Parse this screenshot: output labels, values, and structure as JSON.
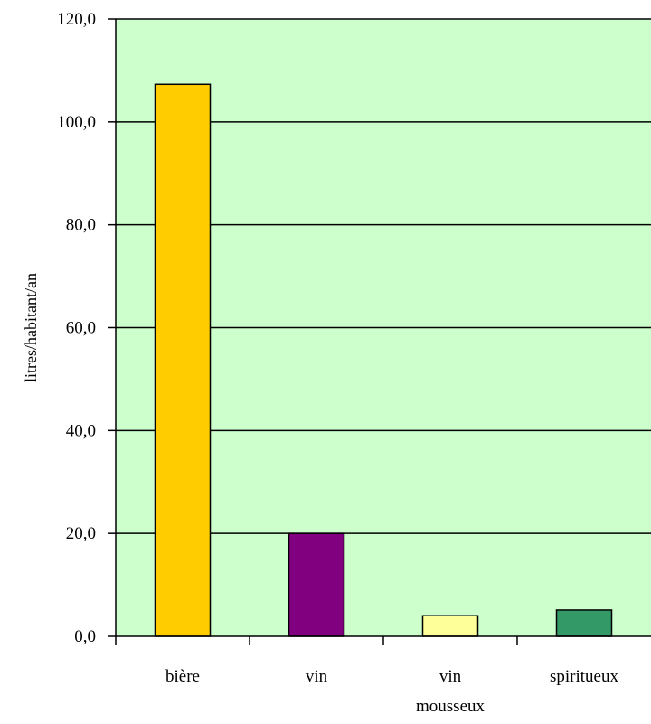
{
  "chart_data": {
    "type": "bar",
    "title": "",
    "xlabel": "",
    "ylabel": "litres/habitant/an",
    "ylim": [
      0,
      120
    ],
    "yticks": [
      "0,0",
      "20,0",
      "40,0",
      "60,0",
      "80,0",
      "100,0",
      "120,0"
    ],
    "ytick_values": [
      0,
      20,
      40,
      60,
      80,
      100,
      120
    ],
    "categories": [
      [
        "bière"
      ],
      [
        "vin"
      ],
      [
        "vin",
        "mousseux"
      ],
      [
        "spiritueux"
      ]
    ],
    "values": [
      107.3,
      20.0,
      4.0,
      5.1
    ],
    "bar_colors": [
      "#FFCC00",
      "#800080",
      "#FFFF99",
      "#339966"
    ],
    "plot_background": "#CCFFCC",
    "gridline_color": "#000000",
    "grid": "horizontal",
    "legend": "none"
  }
}
